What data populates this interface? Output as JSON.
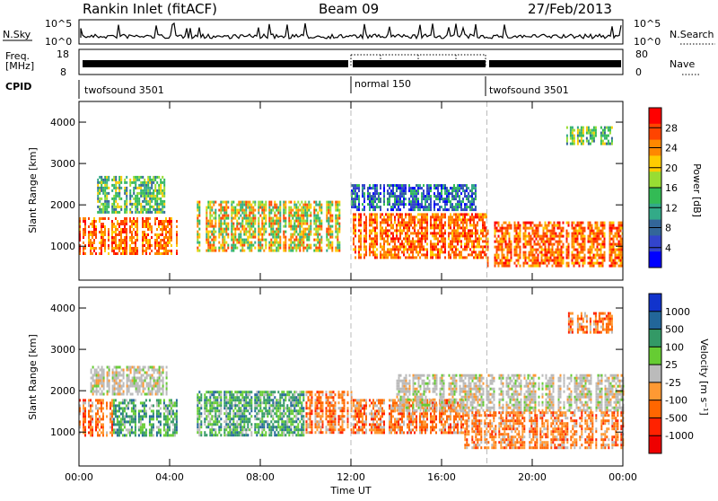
{
  "header": {
    "station": "Rankin Inlet (fitACF)",
    "beam": "Beam 09",
    "date": "27/Feb/2013"
  },
  "summary_panels": {
    "nsky_label": "N.Sky",
    "nsky_ticks": [
      "10^5",
      "10^0"
    ],
    "nsearch_label": "N.Search",
    "nsearch_ticks": [
      "10^5",
      "10^0"
    ],
    "freq_label_1": "Freq.",
    "freq_label_2": "[MHz]",
    "freq_ticks": [
      "18",
      "8"
    ],
    "nave_label": "Nave",
    "nave_ticks": [
      "80",
      "0"
    ],
    "cpid_label": "CPID",
    "cpid_modes": [
      {
        "name": "twofsound 3501",
        "start": 0,
        "end": 12
      },
      {
        "name": "normal 150",
        "start": 12,
        "end": 18
      },
      {
        "name": "twofsound 3501",
        "start": 18,
        "end": 24
      }
    ]
  },
  "chart_data": [
    {
      "type": "heatmap",
      "title": "",
      "parameter": "power",
      "xlabel": "Time UT",
      "ylabel": "Slant Range [km]",
      "xlim": [
        0,
        24
      ],
      "ylim": [
        180,
        4500
      ],
      "x_ticks": [
        "00:00",
        "04:00",
        "08:00",
        "12:00",
        "16:00",
        "20:00",
        "00:00"
      ],
      "y_ticks": [
        1000,
        2000,
        3000,
        4000
      ],
      "mode_change_hours": [
        12,
        18
      ],
      "colorbar": {
        "label": "Power [dB]",
        "ticks": [
          "28",
          "24",
          "20",
          "16",
          "12",
          "8",
          "4"
        ],
        "colors": [
          "#ff0000",
          "#ff4400",
          "#ff8800",
          "#ffcc00",
          "#99dd33",
          "#33bb55",
          "#33aa88",
          "#336699",
          "#3344cc",
          "#0000ff"
        ]
      },
      "echo_bands": [
        {
          "t0": 0,
          "t1": 4.3,
          "r0": 850,
          "r1": 1700,
          "level": "high"
        },
        {
          "t0": 0.8,
          "t1": 3.8,
          "r0": 1800,
          "r1": 2700,
          "level": "mid"
        },
        {
          "t0": 5.2,
          "t1": 11.5,
          "r0": 900,
          "r1": 2100,
          "level": "mid-high"
        },
        {
          "t0": 12,
          "t1": 18,
          "r0": 700,
          "r1": 1800,
          "level": "high"
        },
        {
          "t0": 12,
          "t1": 17.5,
          "r0": 1900,
          "r1": 2500,
          "level": "low"
        },
        {
          "t0": 18,
          "t1": 24,
          "r0": 500,
          "r1": 1600,
          "level": "high"
        },
        {
          "t0": 21.5,
          "t1": 23.5,
          "r0": 3500,
          "r1": 3900,
          "level": "mid"
        }
      ]
    },
    {
      "type": "heatmap",
      "title": "",
      "parameter": "velocity",
      "xlabel": "Time UT",
      "ylabel": "Slant Range [km]",
      "xlim": [
        0,
        24
      ],
      "ylim": [
        180,
        4500
      ],
      "x_ticks": [
        "00:00",
        "04:00",
        "08:00",
        "12:00",
        "16:00",
        "20:00",
        "00:00"
      ],
      "y_ticks": [
        1000,
        2000,
        3000,
        4000
      ],
      "mode_change_hours": [
        12,
        18
      ],
      "colorbar": {
        "label": "Velocity [m s⁻¹]",
        "ticks": [
          "1000",
          "500",
          "100",
          "25",
          "-25",
          "-100",
          "-500",
          "-1000"
        ],
        "colors": [
          "#1133cc",
          "#226699",
          "#339966",
          "#66cc33",
          "#bbbbbb",
          "#ff9933",
          "#ff6600",
          "#ff2200",
          "#ee0000"
        ]
      },
      "echo_bands": [
        {
          "t0": 0,
          "t1": 1.5,
          "r0": 900,
          "r1": 1800,
          "level": "away"
        },
        {
          "t0": 1.5,
          "t1": 4.3,
          "r0": 900,
          "r1": 1800,
          "level": "toward"
        },
        {
          "t0": 0.5,
          "t1": 4,
          "r0": 1900,
          "r1": 2600,
          "level": "near-zero"
        },
        {
          "t0": 5.2,
          "t1": 10,
          "r0": 900,
          "r1": 2000,
          "level": "toward"
        },
        {
          "t0": 10,
          "t1": 12,
          "r0": 1000,
          "r1": 2000,
          "level": "away"
        },
        {
          "t0": 12,
          "t1": 17,
          "r0": 1000,
          "r1": 1800,
          "level": "away"
        },
        {
          "t0": 14,
          "t1": 24,
          "r0": 1500,
          "r1": 2400,
          "level": "near-zero"
        },
        {
          "t0": 17,
          "t1": 24,
          "r0": 600,
          "r1": 1500,
          "level": "away"
        },
        {
          "t0": 21.5,
          "t1": 23.5,
          "r0": 3400,
          "r1": 3900,
          "level": "away"
        }
      ]
    }
  ]
}
